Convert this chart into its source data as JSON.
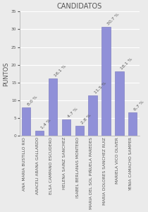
{
  "title": "CANDIDATOS",
  "ylabel": "PUNTOS",
  "categories": [
    "ANA MARIA BUSTILLO RIO",
    "ARACELI ARANA GALLARDO",
    "ELSA CAMPANO ESCUDERO",
    "HELENA SAINZ SANCHEZ",
    "ISABEL BERLANAS MONTERO",
    "MARIA DEL SOL PIÑUELA PAREDES",
    "MARIA DOLORES SANCHEZ RUIZ",
    "MARIELA VICO OLIVER",
    "YENIA CAMACHO SAMPER"
  ],
  "values": [
    8.0,
    1.4,
    16.1,
    4.7,
    2.8,
    11.5,
    30.7,
    18.1,
    6.7
  ],
  "labels": [
    "8,0 %",
    "1,4 %",
    "16,1 %",
    "4,7 %",
    "2,8 %",
    "11,5 %",
    "30,7 %",
    "18,1 %",
    "6,7 %"
  ],
  "bar_color": "#9090d8",
  "bar_edge_color": "#7070bb",
  "background_color": "#ebebeb",
  "plot_bg_color": "#ebebeb",
  "ylim": [
    0,
    35
  ],
  "yticks": [
    0,
    5,
    10,
    15,
    20,
    25,
    30,
    35
  ],
  "title_fontsize": 7,
  "label_fontsize": 4.5,
  "tick_fontsize": 4.2,
  "ylabel_fontsize": 6
}
